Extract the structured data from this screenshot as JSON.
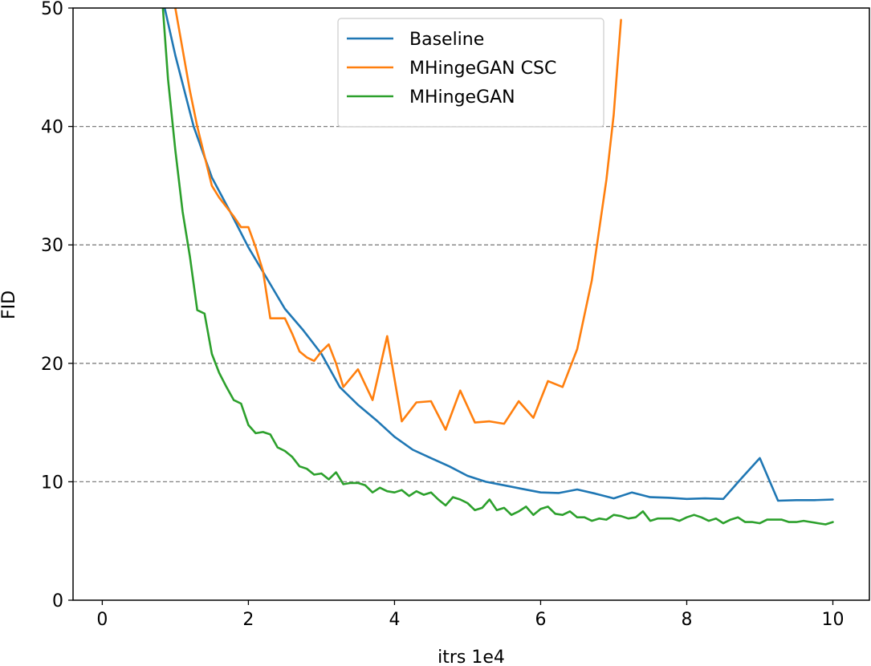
{
  "chart_data": {
    "type": "line",
    "xlabel": "itrs 1e4",
    "ylabel": "FID",
    "xlim": [
      -0.4,
      10.5
    ],
    "ylim": [
      0,
      50
    ],
    "xticks": [
      0,
      2,
      4,
      6,
      8,
      10
    ],
    "yticks": [
      0,
      10,
      20,
      30,
      40,
      50
    ],
    "grid": "horizontal dashed",
    "legend_position": "upper-center",
    "series": [
      {
        "name": "Baseline",
        "color": "#1f77b4",
        "x": [
          0.8,
          1.0,
          1.25,
          1.5,
          1.75,
          2.0,
          2.25,
          2.5,
          2.75,
          3.0,
          3.25,
          3.5,
          3.75,
          4.0,
          4.25,
          4.5,
          4.75,
          5.0,
          5.25,
          5.5,
          5.75,
          6.0,
          6.25,
          6.5,
          6.75,
          7.0,
          7.25,
          7.5,
          7.75,
          8.0,
          8.25,
          8.5,
          8.75,
          9.0,
          9.25,
          9.5,
          9.75,
          10.0
        ],
        "y": [
          51.5,
          46.0,
          40.0,
          35.7,
          32.8,
          29.8,
          27.2,
          24.6,
          22.8,
          20.8,
          18.0,
          16.5,
          15.2,
          13.8,
          12.7,
          12.0,
          11.3,
          10.5,
          10.0,
          9.7,
          9.4,
          9.1,
          9.05,
          9.35,
          9.0,
          8.6,
          9.1,
          8.7,
          8.65,
          8.55,
          8.6,
          8.55,
          10.3,
          12.0,
          8.4,
          8.45,
          8.45,
          8.5
        ]
      },
      {
        "name": "MHingeGAN CSC",
        "color": "#ff7f0e",
        "x": [
          1.0,
          1.1,
          1.2,
          1.3,
          1.4,
          1.5,
          1.6,
          1.7,
          1.8,
          1.9,
          2.0,
          2.1,
          2.2,
          2.3,
          2.4,
          2.5,
          2.6,
          2.7,
          2.8,
          2.9,
          3.0,
          3.1,
          3.2,
          3.3,
          3.5,
          3.7,
          3.9,
          4.1,
          4.3,
          4.5,
          4.7,
          4.9,
          5.1,
          5.3,
          5.5,
          5.7,
          5.9,
          6.1,
          6.3,
          6.5,
          6.7,
          6.9,
          7.0,
          7.05,
          7.1
        ],
        "y": [
          50.0,
          46.5,
          43.0,
          40.0,
          37.5,
          35.0,
          34.0,
          33.2,
          32.4,
          31.5,
          31.5,
          29.8,
          27.8,
          23.8,
          23.8,
          23.8,
          22.5,
          21.0,
          20.5,
          20.2,
          21.0,
          21.6,
          20.0,
          18.0,
          19.5,
          16.9,
          22.3,
          15.1,
          16.7,
          16.8,
          14.4,
          17.7,
          15.0,
          15.1,
          14.9,
          16.8,
          15.4,
          18.5,
          18.0,
          21.2,
          27.0,
          35.5,
          41.0,
          45.0,
          49.0
        ]
      },
      {
        "name": "MHingeGAN",
        "color": "#2ca02c",
        "x": [
          0.83,
          0.9,
          1.0,
          1.1,
          1.2,
          1.3,
          1.4,
          1.5,
          1.6,
          1.7,
          1.8,
          1.9,
          2.0,
          2.1,
          2.2,
          2.3,
          2.4,
          2.5,
          2.6,
          2.7,
          2.8,
          2.9,
          3.0,
          3.1,
          3.2,
          3.3,
          3.4,
          3.5,
          3.6,
          3.7,
          3.8,
          3.9,
          4.0,
          4.1,
          4.2,
          4.3,
          4.4,
          4.5,
          4.6,
          4.7,
          4.8,
          4.9,
          5.0,
          5.1,
          5.2,
          5.3,
          5.4,
          5.5,
          5.6,
          5.7,
          5.8,
          5.9,
          6.0,
          6.1,
          6.2,
          6.3,
          6.4,
          6.5,
          6.6,
          6.7,
          6.8,
          6.9,
          7.0,
          7.1,
          7.2,
          7.3,
          7.4,
          7.5,
          7.6,
          7.7,
          7.8,
          7.9,
          8.0,
          8.1,
          8.2,
          8.3,
          8.4,
          8.5,
          8.6,
          8.7,
          8.8,
          8.9,
          9.0,
          9.1,
          9.2,
          9.3,
          9.4,
          9.5,
          9.6,
          9.7,
          9.8,
          9.9,
          10.0
        ],
        "y": [
          50.0,
          44.0,
          38.0,
          32.8,
          29.0,
          24.5,
          24.2,
          20.8,
          19.2,
          18.0,
          16.9,
          16.6,
          14.8,
          14.1,
          14.2,
          14.0,
          12.9,
          12.6,
          12.1,
          11.3,
          11.1,
          10.6,
          10.7,
          10.2,
          10.8,
          9.8,
          9.9,
          9.9,
          9.7,
          9.1,
          9.5,
          9.2,
          9.1,
          9.3,
          8.8,
          9.2,
          8.9,
          9.1,
          8.5,
          8.0,
          8.7,
          8.5,
          8.2,
          7.6,
          7.8,
          8.5,
          7.6,
          7.8,
          7.2,
          7.5,
          7.9,
          7.2,
          7.7,
          7.9,
          7.3,
          7.2,
          7.5,
          7.0,
          7.0,
          6.7,
          6.9,
          6.8,
          7.2,
          7.1,
          6.9,
          7.0,
          7.5,
          6.7,
          6.9,
          6.9,
          6.9,
          6.7,
          7.0,
          7.2,
          7.0,
          6.7,
          6.9,
          6.5,
          6.8,
          7.0,
          6.6,
          6.6,
          6.5,
          6.8,
          6.8,
          6.8,
          6.6,
          6.6,
          6.7,
          6.6,
          6.5,
          6.4,
          6.6
        ]
      }
    ]
  }
}
